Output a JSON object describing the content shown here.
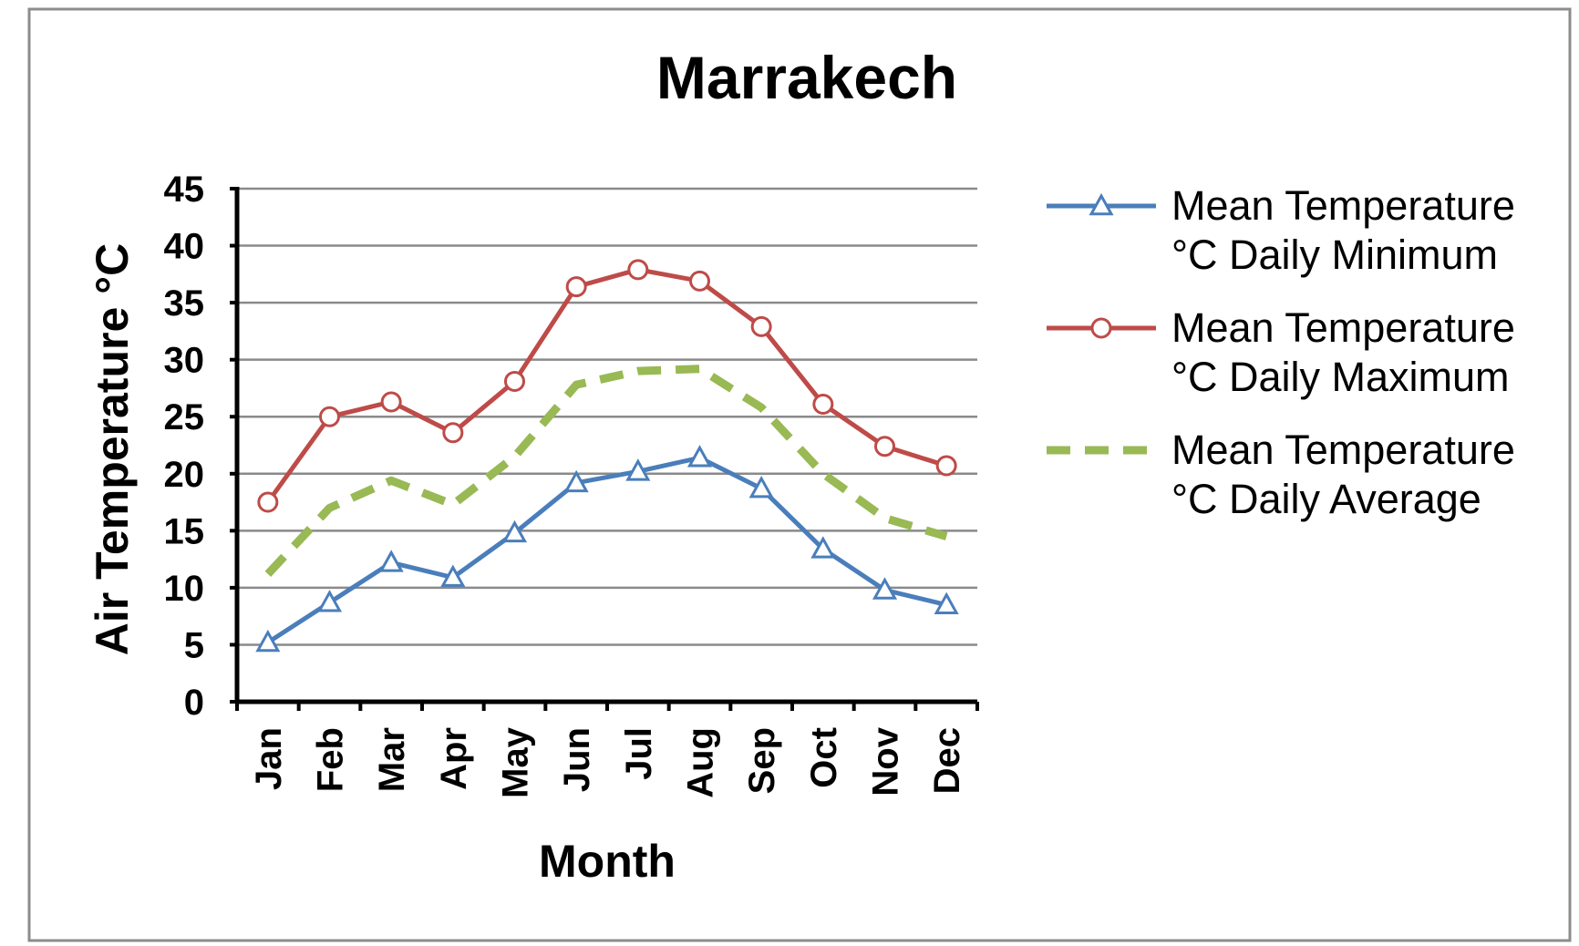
{
  "chart_data": {
    "type": "line",
    "title": "Marrakech",
    "xlabel": "Month",
    "ylabel": "Air Temperature  °C",
    "categories": [
      "Jan",
      "Feb",
      "Mar",
      "Apr",
      "May",
      "Jun",
      "Jul",
      "Aug",
      "Sep",
      "Oct",
      "Nov",
      "Dec"
    ],
    "ylim": [
      0,
      45
    ],
    "yticks": [
      "0",
      "5",
      "10",
      "15",
      "20",
      "25",
      "30",
      "35",
      "40",
      "45"
    ],
    "grid": true,
    "legend_position": "right",
    "series": [
      {
        "name": "Mean Temperature °C Daily Minimum",
        "legend_lines": [
          "Mean Temperature",
          "°C Daily Minimum"
        ],
        "color": "#4a7ebb",
        "marker": "triangle",
        "dash": "solid",
        "values": [
          5.2,
          8.7,
          12.2,
          10.9,
          14.8,
          19.2,
          20.2,
          21.4,
          18.7,
          13.4,
          9.8,
          8.5
        ]
      },
      {
        "name": "Mean Temperature °C Daily Maximum",
        "legend_lines": [
          "Mean Temperature",
          "°C Daily Maximum"
        ],
        "color": "#be4b48",
        "marker": "circle",
        "dash": "solid",
        "values": [
          17.5,
          25.0,
          26.3,
          23.6,
          28.1,
          36.4,
          37.9,
          36.9,
          32.9,
          26.1,
          22.4,
          20.7
        ]
      },
      {
        "name": "Mean Temperature °C Daily Average",
        "legend_lines": [
          "Mean Temperature",
          "°C Daily Average"
        ],
        "color": "#98b954",
        "marker": "none",
        "dash": "dashed",
        "values": [
          11.2,
          17.0,
          19.4,
          17.3,
          21.5,
          27.8,
          29.0,
          29.2,
          25.8,
          20.0,
          16.1,
          14.5
        ]
      }
    ]
  }
}
